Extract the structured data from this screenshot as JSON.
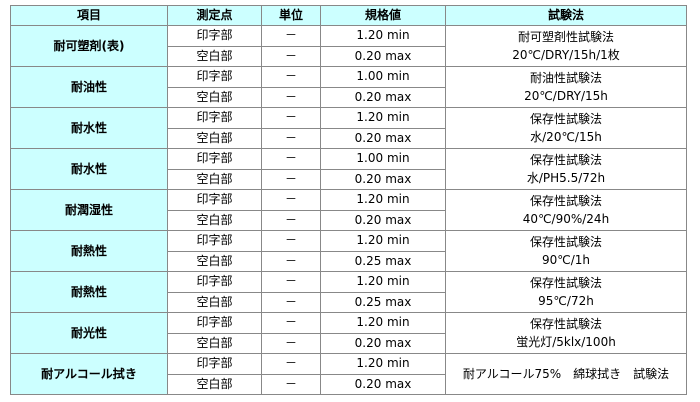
{
  "headers": [
    "項目",
    "測定点",
    "単位",
    "規格値",
    "試験法"
  ],
  "groups": [
    {
      "item": "耐可塑剤(表)",
      "rows": [
        {
          "point": "印字部",
          "unit": "－",
          "spec": "1.20 min"
        },
        {
          "point": "空白部",
          "unit": "－",
          "spec": "0.20 max"
        }
      ],
      "method": [
        "耐可塑剤性試験法",
        "20℃/DRY/15h/1枚"
      ]
    },
    {
      "item": "耐油性",
      "rows": [
        {
          "point": "印字部",
          "unit": "－",
          "spec": "1.00 min"
        },
        {
          "point": "空白部",
          "unit": "－",
          "spec": "0.20 max"
        }
      ],
      "method": [
        "耐油性試験法",
        "20℃/DRY/15h"
      ]
    },
    {
      "item": "耐水性",
      "rows": [
        {
          "point": "印字部",
          "unit": "－",
          "spec": "1.20 min"
        },
        {
          "point": "空白部",
          "unit": "－",
          "spec": "0.20 max"
        }
      ],
      "method": [
        "保存性試験法",
        "水/20℃/15h"
      ]
    },
    {
      "item": "耐水性",
      "rows": [
        {
          "point": "印字部",
          "unit": "－",
          "spec": "1.00 min"
        },
        {
          "point": "空白部",
          "unit": "－",
          "spec": "0.20 max"
        }
      ],
      "method": [
        "保存性試験法",
        "水/PH5.5/72h"
      ]
    },
    {
      "item": "耐潤湿性",
      "rows": [
        {
          "point": "印字部",
          "unit": "－",
          "spec": "1.20 min"
        },
        {
          "point": "空白部",
          "unit": "－",
          "spec": "0.20 max"
        }
      ],
      "method": [
        "保存性試験法",
        "40℃/90%/24h"
      ]
    },
    {
      "item": "耐熱性",
      "rows": [
        {
          "point": "印字部",
          "unit": "－",
          "spec": "1.20 min"
        },
        {
          "point": "空白部",
          "unit": "－",
          "spec": "0.25 max"
        }
      ],
      "method": [
        "保存性試験法",
        "90℃/1h"
      ]
    },
    {
      "item": "耐熱性",
      "rows": [
        {
          "point": "印字部",
          "unit": "－",
          "spec": "1.20 min"
        },
        {
          "point": "空白部",
          "unit": "－",
          "spec": "0.25 max"
        }
      ],
      "method": [
        "保存性試験法",
        "95℃/72h"
      ]
    },
    {
      "item": "耐光性",
      "rows": [
        {
          "point": "印字部",
          "unit": "－",
          "spec": "1.20 min"
        },
        {
          "point": "空白部",
          "unit": "－",
          "spec": "0.20 max"
        }
      ],
      "method": [
        "保存性試験法",
        "蛍光灯/5klx/100h"
      ]
    },
    {
      "item": "耐アルコール拭き",
      "rows": [
        {
          "point": "印字部",
          "unit": "－",
          "spec": "1.20 min"
        },
        {
          "point": "空白部",
          "unit": "－",
          "spec": "0.20 max"
        }
      ],
      "method": [
        "耐アルコール75%　綿球拭き　試験法"
      ]
    }
  ]
}
